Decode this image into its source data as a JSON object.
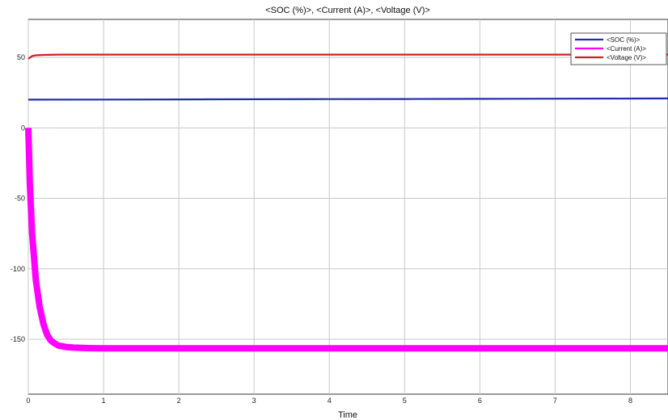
{
  "chart_data": {
    "type": "line",
    "title": "<SOC (%)>, <Current (A)>, <Voltage (V)>",
    "xlabel": "Time",
    "ylabel": "",
    "xlim": [
      0,
      8.5
    ],
    "ylim": [
      -189,
      77
    ],
    "x_ticks": [
      "0",
      "1",
      "2",
      "3",
      "4",
      "5",
      "6",
      "7",
      "8"
    ],
    "y_ticks": [
      "50",
      "0",
      "-50",
      "-100",
      "-150"
    ],
    "grid": true,
    "legend_position": "top-right",
    "series": [
      {
        "name": "<SOC (%)>",
        "color": "#1f2fa8",
        "x": [
          0,
          1,
          2,
          3,
          4,
          5,
          6,
          7,
          8,
          8.5
        ],
        "y": [
          20,
          20.1,
          20.2,
          20.3,
          20.4,
          20.5,
          20.6,
          20.7,
          20.8,
          20.9
        ]
      },
      {
        "name": "<Current (A)>",
        "color": "#ff00ff",
        "x": [
          0,
          0.02,
          0.05,
          0.1,
          0.15,
          0.2,
          0.25,
          0.3,
          0.35,
          0.4,
          0.5,
          0.6,
          0.8,
          1,
          2,
          3,
          4,
          5,
          6,
          7,
          8,
          8.5
        ],
        "y": [
          0,
          -40,
          -75,
          -108,
          -127,
          -139,
          -147,
          -151,
          -153,
          -154.5,
          -155.5,
          -156,
          -156.3,
          -156.5,
          -156.5,
          -156.5,
          -156.5,
          -156.5,
          -156.5,
          -156.5,
          -156.5,
          -156.5
        ],
        "band": 4
      },
      {
        "name": "<Voltage (V)>",
        "color": "#cc2222",
        "x": [
          0,
          0.05,
          0.1,
          0.2,
          0.4,
          1,
          2,
          3,
          4,
          5,
          6,
          7,
          8,
          8.5
        ],
        "y": [
          49,
          51,
          51.5,
          51.8,
          52,
          52,
          52,
          52,
          52,
          52,
          52,
          52,
          52,
          52
        ]
      }
    ]
  }
}
